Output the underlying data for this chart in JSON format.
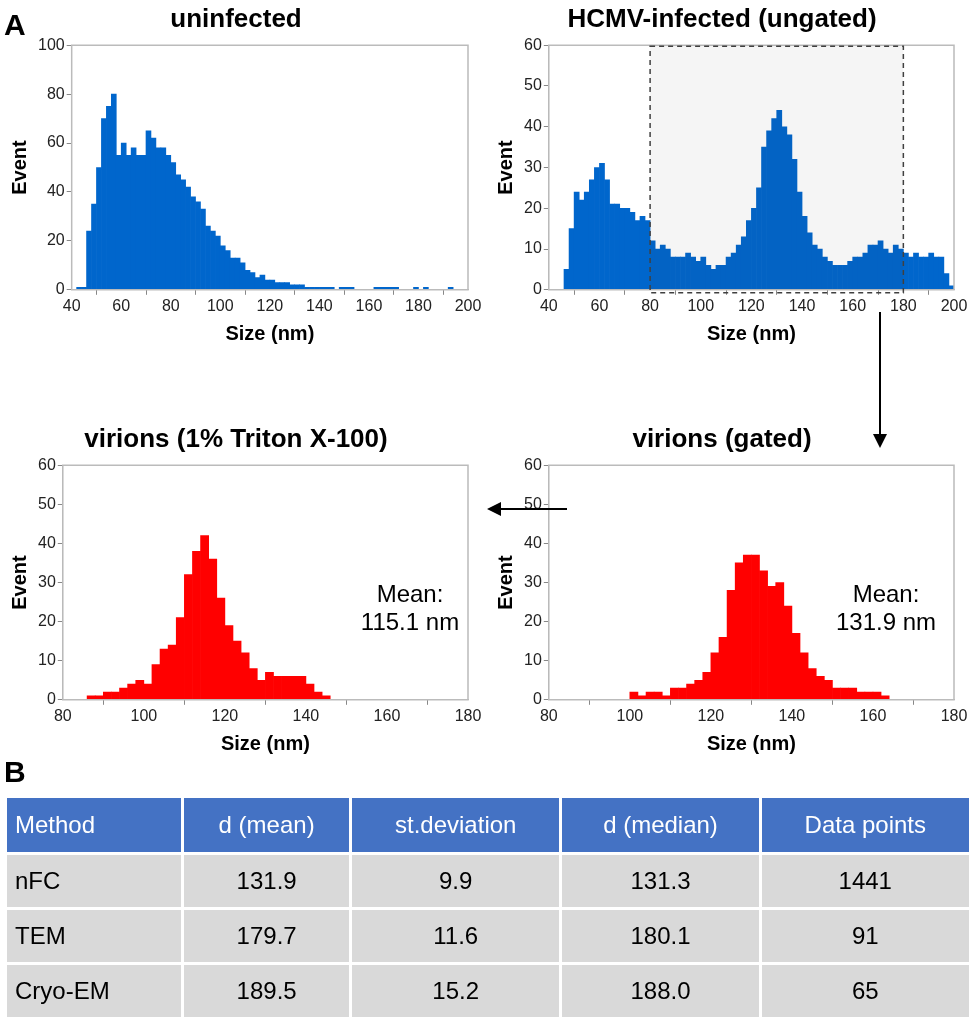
{
  "chart_data": [
    {
      "type": "histogram",
      "title": "uninfected",
      "xlabel": "Size (nm)",
      "ylabel": "Event",
      "color": "#0066cc",
      "annotations": [
        "A"
      ],
      "bins": [
        40,
        42,
        44,
        46,
        48,
        50,
        52,
        54,
        56,
        58,
        60,
        62,
        64,
        66,
        68,
        70,
        72,
        74,
        76,
        78,
        80,
        82,
        84,
        86,
        88,
        90,
        92,
        94,
        96,
        98,
        100,
        102,
        104,
        106,
        108,
        110,
        112,
        114,
        116,
        118,
        120,
        122,
        124,
        126,
        128,
        130,
        132,
        134,
        136,
        138,
        140,
        142,
        144,
        146,
        148,
        150,
        152,
        154,
        156,
        158,
        160,
        162,
        164,
        166,
        168,
        170,
        172,
        174,
        176,
        178,
        180,
        182,
        184,
        186,
        188,
        190,
        192,
        194,
        196,
        198,
        200
      ],
      "values": [
        0,
        1,
        1,
        24,
        35,
        50,
        70,
        75,
        80,
        55,
        60,
        55,
        58,
        55,
        55,
        65,
        62,
        58,
        58,
        55,
        52,
        47,
        45,
        42,
        38,
        36,
        33,
        26,
        24,
        22,
        18,
        16,
        13,
        13,
        11,
        8,
        7,
        5,
        6,
        4,
        4,
        3,
        3,
        3,
        2,
        2,
        2,
        1,
        1,
        1,
        1,
        1,
        1,
        0,
        1,
        1,
        1,
        0,
        0,
        0,
        0,
        1,
        1,
        1,
        1,
        1,
        0,
        0,
        0,
        1,
        0,
        1,
        0,
        0,
        0,
        0,
        1,
        0,
        0,
        0
      ],
      "xlim": [
        40,
        200
      ],
      "xticks": [
        40,
        60,
        80,
        100,
        120,
        140,
        160,
        180,
        200
      ],
      "ylim": [
        0,
        100
      ],
      "yticks": [
        0,
        20,
        40,
        60,
        80,
        100
      ]
    },
    {
      "type": "histogram",
      "title": "HCMV-infected (ungated)",
      "xlabel": "Size (nm)",
      "ylabel": "Event",
      "color": "#0066cc",
      "bins": [
        40,
        42,
        44,
        46,
        48,
        50,
        52,
        54,
        56,
        58,
        60,
        62,
        64,
        66,
        68,
        70,
        72,
        74,
        76,
        78,
        80,
        82,
        84,
        86,
        88,
        90,
        92,
        94,
        96,
        98,
        100,
        102,
        104,
        106,
        108,
        110,
        112,
        114,
        116,
        118,
        120,
        122,
        124,
        126,
        128,
        130,
        132,
        134,
        136,
        138,
        140,
        142,
        144,
        146,
        148,
        150,
        152,
        154,
        156,
        158,
        160,
        162,
        164,
        166,
        168,
        170,
        172,
        174,
        176,
        178,
        180,
        182,
        184,
        186,
        188,
        190,
        192,
        194,
        196,
        198,
        200
      ],
      "values": [
        0,
        0,
        0,
        5,
        15,
        24,
        22,
        24,
        27,
        30,
        31,
        27,
        21,
        21,
        20,
        20,
        19,
        17,
        18,
        17,
        12,
        10,
        11,
        10,
        8,
        8,
        8,
        9,
        8,
        7,
        8,
        6,
        5,
        6,
        6,
        8,
        9,
        11,
        13,
        17,
        20,
        25,
        35,
        39,
        42,
        44,
        40,
        38,
        32,
        24,
        18,
        14,
        11,
        10,
        8,
        7,
        6,
        6,
        6,
        7,
        8,
        8,
        9,
        11,
        11,
        12,
        10,
        9,
        11,
        10,
        9,
        8,
        9,
        8,
        8,
        9,
        8,
        8,
        4,
        1
      ],
      "bands": [
        {
          "axis": "x",
          "from": 80,
          "to": 180,
          "color": "#404040"
        }
      ],
      "xlim": [
        40,
        200
      ],
      "xticks": [
        40,
        60,
        80,
        100,
        120,
        140,
        160,
        180,
        200
      ],
      "ylim": [
        0,
        60
      ],
      "yticks": [
        0,
        10,
        20,
        30,
        40,
        50,
        60
      ]
    },
    {
      "type": "histogram",
      "title": "virions (1% Triton X-100)",
      "xlabel": "Size (nm)",
      "ylabel": "Event",
      "color": "#ff0000",
      "annotations": [
        "Mean: 115.1 nm"
      ],
      "bins": [
        80,
        82,
        84,
        86,
        88,
        90,
        92,
        94,
        96,
        98,
        100,
        102,
        104,
        106,
        108,
        110,
        112,
        114,
        116,
        118,
        120,
        122,
        124,
        126,
        128,
        130,
        132,
        134,
        136,
        138,
        140,
        142,
        144,
        146,
        148,
        150,
        152,
        154,
        156,
        158,
        160,
        162,
        164,
        166,
        168,
        170,
        172,
        174,
        176,
        178,
        180
      ],
      "values": [
        0,
        0,
        0,
        1,
        1,
        2,
        2,
        3,
        4,
        5,
        4,
        9,
        13,
        14,
        21,
        32,
        38,
        42,
        36,
        26,
        19,
        15,
        12,
        8,
        5,
        7,
        6,
        6,
        6,
        6,
        4,
        2,
        1,
        0,
        0,
        0,
        0,
        0,
        0,
        0,
        0,
        0,
        0,
        0,
        0,
        0,
        0,
        0,
        0,
        0
      ],
      "xlim": [
        80,
        180
      ],
      "xticks": [
        80,
        100,
        120,
        140,
        160,
        180
      ],
      "ylim": [
        0,
        60
      ],
      "yticks": [
        0,
        10,
        20,
        30,
        40,
        50,
        60
      ]
    },
    {
      "type": "histogram",
      "title": "virions (gated)",
      "xlabel": "Size (nm)",
      "ylabel": "Event",
      "color": "#ff0000",
      "annotations": [
        "Mean: 131.9 nm"
      ],
      "bins": [
        80,
        82,
        84,
        86,
        88,
        90,
        92,
        94,
        96,
        98,
        100,
        102,
        104,
        106,
        108,
        110,
        112,
        114,
        116,
        118,
        120,
        122,
        124,
        126,
        128,
        130,
        132,
        134,
        136,
        138,
        140,
        142,
        144,
        146,
        148,
        150,
        152,
        154,
        156,
        158,
        160,
        162,
        164,
        166,
        168,
        170,
        172,
        174,
        176,
        178,
        180
      ],
      "values": [
        0,
        0,
        0,
        0,
        0,
        0,
        0,
        0,
        0,
        0,
        2,
        1,
        2,
        2,
        1,
        3,
        3,
        4,
        5,
        7,
        12,
        16,
        28,
        35,
        37,
        37,
        33,
        29,
        30,
        24,
        17,
        12,
        8,
        6,
        5,
        3,
        3,
        3,
        2,
        2,
        2,
        1,
        0,
        0,
        0,
        0,
        0,
        0,
        0,
        0
      ],
      "xlim": [
        80,
        180
      ],
      "xticks": [
        80,
        100,
        120,
        140,
        160,
        180
      ],
      "ylim": [
        0,
        60
      ],
      "yticks": [
        0,
        10,
        20,
        30,
        40,
        50,
        60
      ]
    },
    {
      "type": "other",
      "title": "B",
      "xlabel": "Method",
      "categories": [
        "nFC",
        "TEM",
        "Cryo-EM"
      ],
      "data_labels": true,
      "series": [
        {
          "name": "d (mean)",
          "values": [
            131.9,
            179.7,
            189.5
          ]
        },
        {
          "name": "st.deviation",
          "values": [
            9.9,
            11.6,
            15.2
          ]
        },
        {
          "name": "d (median)",
          "values": [
            131.3,
            180.1,
            188.0
          ],
          "value_labels": [
            "131.3",
            "180.1",
            "188.0"
          ]
        },
        {
          "name": "Data points",
          "values": [
            1441,
            91,
            65
          ]
        }
      ]
    }
  ]
}
